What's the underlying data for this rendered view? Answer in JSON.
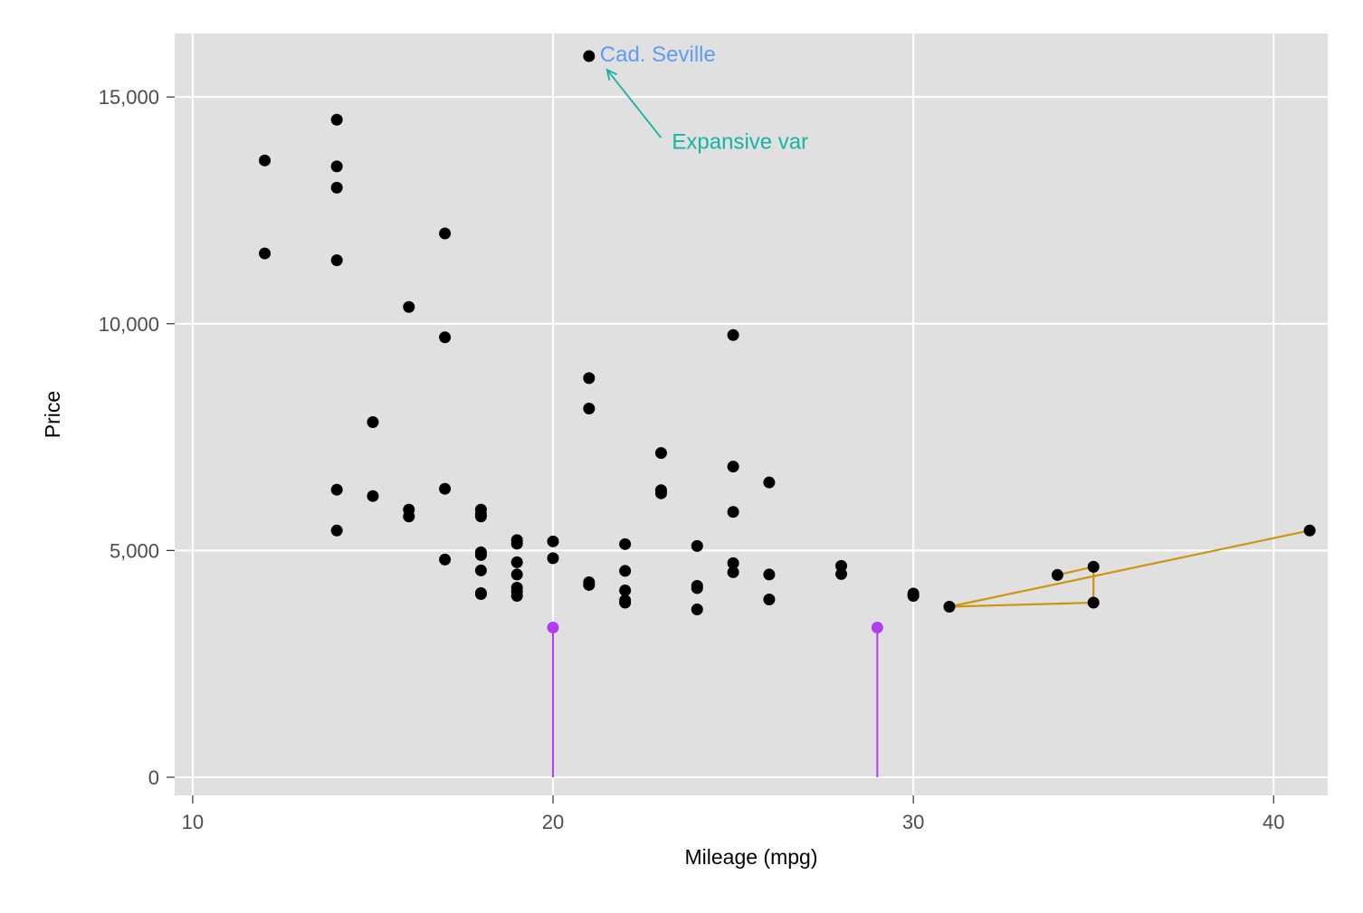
{
  "chart_data": {
    "type": "scatter",
    "title": "",
    "xlabel": "Mileage (mpg)",
    "ylabel": "Price",
    "xlim": [
      9.5,
      41.5
    ],
    "ylim": [
      -400,
      16400
    ],
    "xticks": [
      10,
      20,
      30,
      40
    ],
    "xtick_labels": [
      "10",
      "20",
      "30",
      "40"
    ],
    "yticks": [
      0,
      5000,
      10000,
      15000
    ],
    "ytick_labels": [
      "0",
      "5,000",
      "10,000",
      "15,000"
    ],
    "grid": true,
    "legend": "none",
    "colors": {
      "panel": "#e0e0e0",
      "grid": "#ffffff",
      "points": "#000000",
      "highlight_label": "#5f9cf5",
      "annotation": "#17b3a3",
      "spikes": "#b13ef0",
      "connected_line": "#cc9611",
      "tick_label": "#4d4d4d"
    },
    "series": [
      {
        "name": "",
        "points": [
          [
            12,
            13600
          ],
          [
            12,
            11550
          ],
          [
            14,
            14500
          ],
          [
            14,
            13470
          ],
          [
            14,
            13000
          ],
          [
            14,
            11400
          ],
          [
            14,
            6340
          ],
          [
            14,
            5440
          ],
          [
            15,
            7830
          ],
          [
            15,
            6200
          ],
          [
            16,
            10370
          ],
          [
            16,
            5900
          ],
          [
            16,
            5750
          ],
          [
            17,
            11990
          ],
          [
            17,
            9700
          ],
          [
            17,
            6360
          ],
          [
            17,
            4800
          ],
          [
            18,
            5900
          ],
          [
            18,
            5800
          ],
          [
            18,
            5750
          ],
          [
            18,
            4960
          ],
          [
            18,
            4900
          ],
          [
            18,
            4560
          ],
          [
            18,
            4060
          ],
          [
            18,
            4040
          ],
          [
            19,
            5230
          ],
          [
            19,
            5150
          ],
          [
            19,
            4740
          ],
          [
            19,
            4470
          ],
          [
            19,
            4180
          ],
          [
            19,
            4100
          ],
          [
            19,
            4000
          ],
          [
            20,
            5200
          ],
          [
            20,
            4830
          ],
          [
            21,
            15900
          ],
          [
            21,
            8800
          ],
          [
            21,
            8130
          ],
          [
            21,
            4300
          ],
          [
            21,
            4240
          ],
          [
            22,
            5140
          ],
          [
            22,
            4550
          ],
          [
            22,
            4120
          ],
          [
            22,
            3900
          ],
          [
            22,
            3850
          ],
          [
            23,
            7150
          ],
          [
            23,
            6330
          ],
          [
            23,
            6260
          ],
          [
            24,
            5100
          ],
          [
            24,
            4220
          ],
          [
            24,
            4170
          ],
          [
            24,
            3700
          ],
          [
            25,
            9750
          ],
          [
            25,
            6850
          ],
          [
            25,
            5850
          ],
          [
            25,
            4720
          ],
          [
            25,
            4520
          ],
          [
            26,
            6500
          ],
          [
            26,
            4470
          ],
          [
            26,
            3920
          ],
          [
            28,
            4660
          ],
          [
            28,
            4480
          ],
          [
            30,
            4050
          ],
          [
            30,
            4000
          ],
          [
            31,
            3760
          ],
          [
            34,
            4460
          ],
          [
            35,
            4640
          ],
          [
            35,
            3850
          ],
          [
            41,
            5440
          ]
        ]
      }
    ],
    "spikes": [
      [
        20,
        3300
      ],
      [
        29,
        3300
      ]
    ],
    "connected_line": [
      [
        34,
        4460
      ],
      [
        35,
        4640
      ],
      [
        35,
        3850
      ],
      [
        31,
        3760
      ],
      [
        41,
        5440
      ]
    ],
    "annotations": [
      {
        "text": "Cad. Seville",
        "x": 21.3,
        "y": 15960
      },
      {
        "text": "Expansive var",
        "x": 23.3,
        "y": 14040,
        "arrow_from": [
          23,
          14100
        ],
        "arrow_to": [
          21.5,
          15600
        ]
      }
    ]
  }
}
